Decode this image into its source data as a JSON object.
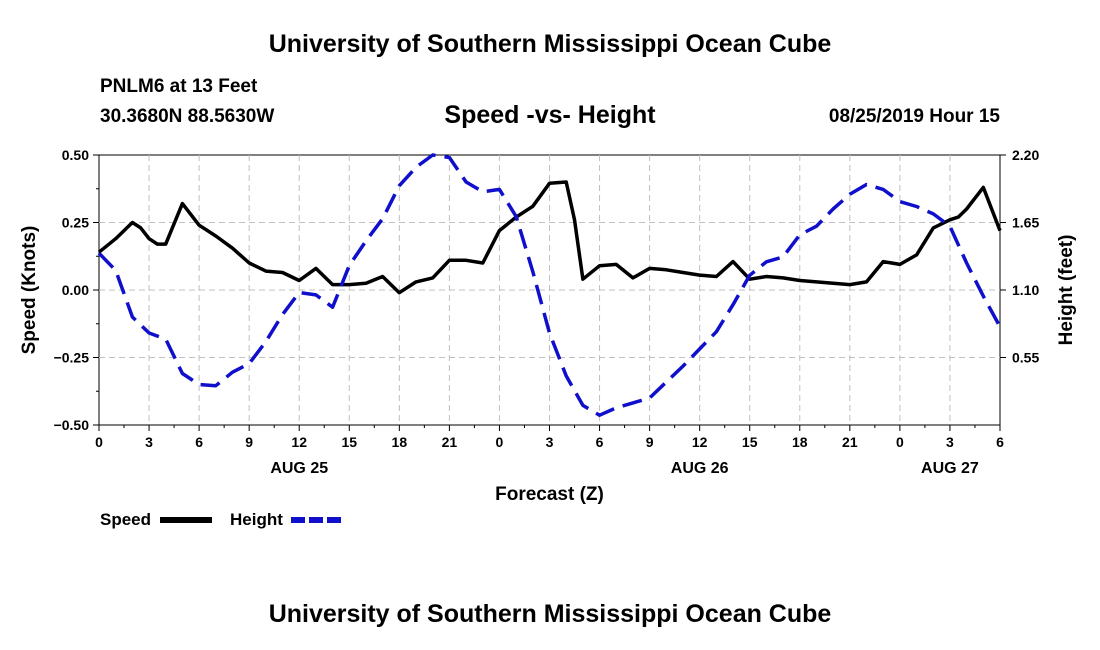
{
  "header": {
    "title": "University of Southern Mississippi Ocean Cube",
    "station": "PNLM6 at 13 Feet",
    "location": "30.3680N 88.5630W",
    "chart_title": "Speed -vs- Height",
    "timestamp": "08/25/2019 Hour 15"
  },
  "footer": {
    "title": "University of Southern Mississippi Ocean Cube"
  },
  "chart_data": {
    "type": "line",
    "title": "Speed -vs- Height",
    "xlabel": "Forecast (Z)",
    "ylabel": "Speed (Knots)",
    "y2label": "Height (feet)",
    "x_range_hours": [
      0,
      54
    ],
    "x_ticks": [
      "0",
      "3",
      "6",
      "9",
      "12",
      "15",
      "18",
      "21",
      "0",
      "3",
      "6",
      "9",
      "12",
      "15",
      "18",
      "21",
      "0",
      "3",
      "6"
    ],
    "date_labels": [
      {
        "label": "AUG 25",
        "hour": 12
      },
      {
        "label": "AUG 26",
        "hour": 36
      },
      {
        "label": "AUG 27",
        "hour": 51
      }
    ],
    "ylim": [
      -0.5,
      0.5
    ],
    "y_ticks": [
      "0.50",
      "0.25",
      "0.00",
      "−0.25",
      "−0.50"
    ],
    "y2lim": [
      0.0,
      2.2
    ],
    "y2_ticks": [
      "2.20",
      "1.65",
      "1.10",
      "0.55"
    ],
    "grid": true,
    "legend": {
      "position": "bottom-left",
      "items": [
        "Speed",
        "Height"
      ]
    },
    "series": [
      {
        "name": "Speed",
        "axis": "left",
        "color": "#000000",
        "dash": "solid",
        "x": [
          0,
          1,
          2,
          2.5,
          3,
          3.5,
          4,
          5,
          6,
          7,
          8,
          9,
          10,
          11,
          12,
          13,
          14,
          15,
          16,
          17,
          18,
          19,
          20,
          21,
          22,
          23,
          24,
          25,
          26,
          27,
          28,
          28.5,
          29,
          30,
          31,
          32,
          33,
          34,
          35,
          36,
          37,
          38,
          39,
          40,
          41,
          42,
          43,
          44,
          45,
          46,
          47,
          48,
          49,
          50,
          51,
          51.5,
          52,
          53,
          54
        ],
        "values": [
          0.14,
          0.19,
          0.25,
          0.23,
          0.19,
          0.17,
          0.17,
          0.32,
          0.24,
          0.2,
          0.155,
          0.1,
          0.07,
          0.065,
          0.035,
          0.08,
          0.02,
          0.02,
          0.025,
          0.05,
          -0.01,
          0.03,
          0.045,
          0.11,
          0.11,
          0.1,
          0.22,
          0.27,
          0.31,
          0.395,
          0.4,
          0.26,
          0.04,
          0.09,
          0.095,
          0.045,
          0.08,
          0.075,
          0.065,
          0.055,
          0.05,
          0.105,
          0.04,
          0.05,
          0.045,
          0.035,
          0.03,
          0.025,
          0.02,
          0.03,
          0.105,
          0.095,
          0.13,
          0.23,
          0.26,
          0.27,
          0.3,
          0.38,
          0.22
        ]
      },
      {
        "name": "Height",
        "axis": "right",
        "color": "#1010cc",
        "dash": "dashed",
        "x": [
          0,
          1,
          2,
          3,
          4,
          5,
          6,
          7,
          8,
          9,
          10,
          11,
          12,
          13,
          14,
          15,
          16,
          17,
          18,
          19,
          20,
          21,
          22,
          23,
          24,
          25,
          26,
          27,
          28,
          29,
          30,
          31,
          32,
          33,
          34,
          35,
          36,
          37,
          38,
          39,
          40,
          41,
          42,
          43,
          44,
          45,
          46,
          47,
          48,
          49,
          50,
          51,
          52,
          53,
          54
        ],
        "values": [
          1.4,
          1.26,
          0.88,
          0.75,
          0.7,
          0.42,
          0.33,
          0.32,
          0.43,
          0.5,
          0.68,
          0.9,
          1.08,
          1.06,
          0.96,
          1.3,
          1.5,
          1.68,
          1.95,
          2.1,
          2.2,
          2.18,
          1.98,
          1.9,
          1.92,
          1.7,
          1.25,
          0.75,
          0.4,
          0.16,
          0.08,
          0.14,
          0.18,
          0.22,
          0.35,
          0.48,
          0.62,
          0.76,
          0.98,
          1.22,
          1.33,
          1.37,
          1.55,
          1.62,
          1.76,
          1.88,
          1.96,
          1.92,
          1.82,
          1.78,
          1.72,
          1.62,
          1.32,
          1.05,
          0.8
        ]
      }
    ]
  },
  "legend": {
    "speed_label": "Speed",
    "height_label": "Height"
  }
}
